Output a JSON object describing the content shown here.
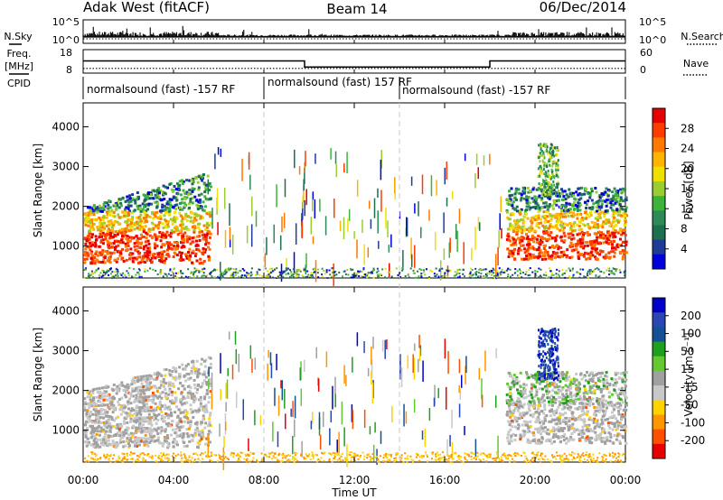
{
  "header": {
    "station": "Adak West (fitACF)",
    "beam": "Beam 14",
    "date": "06/Dec/2014"
  },
  "left_labels": {
    "nsky": "N.Sky",
    "freq_top": "Freq.",
    "freq_unit": "[MHz]",
    "cpid": "CPID"
  },
  "right_labels": {
    "nsearch": "N.Search",
    "nave": "Nave"
  },
  "colors": {
    "axis": "#000000",
    "gridline": "#c8c8c8"
  },
  "chart_data": [
    {
      "type": "line",
      "name": "noise-panel",
      "left_ticks": [
        "10^5",
        "10^0"
      ],
      "right_ticks": [
        "10^5",
        "10^0"
      ],
      "series": [
        {
          "name": "N.Sky"
        },
        {
          "name": "N.Search"
        }
      ]
    },
    {
      "type": "line",
      "name": "freq-nave-panel",
      "left_ticks": [
        "18",
        "8"
      ],
      "right_ticks": [
        "60",
        "0"
      ],
      "freq_mhz": [
        {
          "x": 0,
          "y": 13.2
        },
        {
          "x": 9.8,
          "y": 13.2
        },
        {
          "x": 9.8,
          "y": 10.6
        },
        {
          "x": 18.0,
          "y": 10.6
        },
        {
          "x": 18.0,
          "y": 13.2
        },
        {
          "x": 24,
          "y": 13.2
        }
      ],
      "nave_level": 12
    },
    {
      "type": "table",
      "name": "cpid-row",
      "segments": [
        {
          "start": 0,
          "end": 8.0,
          "label": "normalsound (fast) -157 RF"
        },
        {
          "start": 8.0,
          "end": 14.0,
          "label": "normalsound (fast) 157 RF"
        },
        {
          "start": 14.0,
          "end": 24,
          "label": "normalsound (fast) -157 RF"
        }
      ]
    },
    {
      "type": "heatmap",
      "name": "power-panel",
      "ylabel": "Slant Range [km]",
      "colorbar_label": "Power [dB]",
      "colorbar_ticks": [
        "28",
        "24",
        "20",
        "16",
        "12",
        "8",
        "4"
      ],
      "colorbar_colors": [
        "#e60000",
        "#ff3c00",
        "#ff7800",
        "#ffb400",
        "#f0e000",
        "#9acd32",
        "#3cb43c",
        "#2e8b57",
        "#1e6e50",
        "#1e3c96",
        "#0000dc"
      ],
      "yticks": [
        "4000",
        "3000",
        "2000",
        "1000"
      ],
      "ylim": [
        200,
        4600
      ],
      "xlim": [
        0,
        24
      ]
    },
    {
      "type": "heatmap",
      "name": "velocity-panel",
      "ylabel": "Slant Range [km]",
      "colorbar_label": "Velocity [m s⁻¹]",
      "colorbar_ticks": [
        "200",
        "100",
        "50",
        "15",
        "-15",
        "-50",
        "-100",
        "-200"
      ],
      "colorbar_colors": [
        "#0000c8",
        "#2846b4",
        "#145096",
        "#1ea01e",
        "#64c832",
        "#a0a0a0",
        "#c8c8c8",
        "#ffd200",
        "#ff9600",
        "#ff5000",
        "#e60000"
      ],
      "yticks": [
        "4000",
        "3000",
        "2000",
        "1000"
      ],
      "ylim": [
        200,
        4600
      ],
      "xlim": [
        0,
        24
      ]
    }
  ],
  "x_axis": {
    "ticks": [
      "00:00",
      "04:00",
      "08:00",
      "12:00",
      "16:00",
      "20:00",
      "00:00"
    ],
    "xlabel": "Time UT"
  }
}
